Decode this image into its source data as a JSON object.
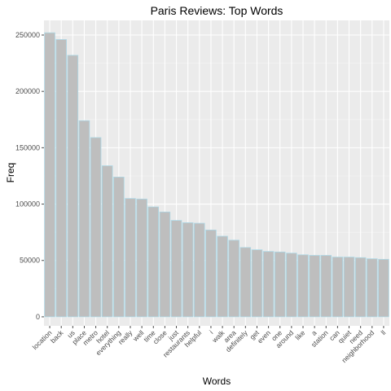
{
  "chart_data": {
    "type": "bar",
    "title": "Paris Reviews: Top Words",
    "xlabel": "Words",
    "ylabel": "Freq",
    "ylim": [
      -8000,
      263000
    ],
    "yticks": [
      0,
      50000,
      100000,
      150000,
      200000,
      250000
    ],
    "ytick_labels": [
      "0",
      "50000",
      "100000",
      "150000",
      "200000",
      "250000"
    ],
    "grid": true,
    "colors": {
      "panel": "#ebebeb",
      "grid_major": "#ffffff",
      "bar_fill": "#bebebe",
      "bar_outline": "#add8e6",
      "tick": "#4d4d4d"
    },
    "categories": [
      "location",
      "back",
      "us",
      "place",
      "metro",
      "hotel",
      "everything",
      "really",
      "well",
      "time",
      "close",
      "just",
      "restaurants",
      "helpful",
      "i",
      "walk",
      "area",
      "definitely",
      "get",
      "even",
      "one",
      "around",
      "like",
      "a",
      "station",
      "can",
      "quiet",
      "need",
      "neighborhood",
      "ll"
    ],
    "values": [
      252000,
      246000,
      232000,
      174000,
      159000,
      134000,
      124000,
      105000,
      104500,
      97500,
      93000,
      85500,
      83500,
      83000,
      77000,
      71500,
      68000,
      61500,
      59500,
      58000,
      57500,
      56500,
      55000,
      54500,
      54500,
      53000,
      53000,
      52500,
      51500,
      51000
    ]
  }
}
